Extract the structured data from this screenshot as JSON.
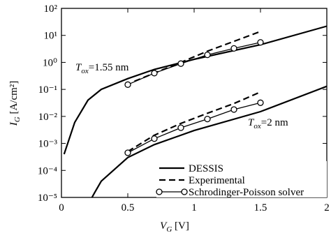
{
  "chart_data": {
    "type": "line",
    "log_y": true,
    "xlabel": [
      "V",
      "G",
      " [V]"
    ],
    "ylabel": [
      "I",
      "G",
      " [A/cm²]"
    ],
    "xlim": [
      0,
      2
    ],
    "xticks": [
      0,
      0.5,
      1,
      1.5,
      2
    ],
    "ylim": [
      1e-05,
      100
    ],
    "yticks": [
      {
        "value": 100,
        "label": "10²"
      },
      {
        "value": 10,
        "label": "10¹"
      },
      {
        "value": 1,
        "label": "10⁰"
      },
      {
        "value": 0.1,
        "label": "10⁻¹"
      },
      {
        "value": 0.01,
        "label": "10⁻²"
      },
      {
        "value": 0.001,
        "label": "10⁻³"
      },
      {
        "value": 0.0001,
        "label": "10⁻⁴"
      },
      {
        "value": 1e-05,
        "label": "10⁻⁵"
      }
    ],
    "annotations": [
      [
        "T",
        "ox",
        "=1.55 nm"
      ],
      [
        "T",
        "ox",
        "=2 nm"
      ]
    ],
    "series": [
      {
        "name": "DESSIS",
        "color": "#000000",
        "style": "solid",
        "marker": "none",
        "curves": [
          {
            "x": [
              0.02,
              0.1,
              0.2,
              0.3,
              0.5,
              0.7,
              1.0,
              1.5,
              2.0
            ],
            "values": [
              0.0004,
              0.006,
              0.04,
              0.1,
              0.25,
              0.55,
              1.3,
              4.5,
              22
            ]
          },
          {
            "x": [
              0.23,
              0.25,
              0.3,
              0.5,
              0.7,
              1.0,
              1.5,
              2.0
            ],
            "values": [
              1e-05,
              1.5e-05,
              4e-05,
              0.0003,
              0.0009,
              0.003,
              0.015,
              0.13
            ]
          }
        ]
      },
      {
        "name": "Experimental",
        "color": "#000000",
        "style": "dashed",
        "marker": "none",
        "curves": [
          {
            "x": [
              0.55,
              0.7,
              0.9,
              1.1,
              1.3,
              1.5
            ],
            "values": [
              0.2,
              0.4,
              1.0,
              2.6,
              6,
              14
            ]
          },
          {
            "x": [
              0.5,
              0.7,
              0.9,
              1.1,
              1.3,
              1.5
            ],
            "values": [
              0.0005,
              0.002,
              0.0055,
              0.013,
              0.03,
              0.08
            ]
          }
        ]
      },
      {
        "name": "Schrodinger-Poisson solver",
        "color": "#000000",
        "style": "solid",
        "marker": "circle",
        "curves": [
          {
            "x": [
              0.5,
              0.7,
              0.9,
              1.1,
              1.3,
              1.5
            ],
            "values": [
              0.15,
              0.4,
              0.9,
              1.9,
              3.3,
              5.5
            ]
          },
          {
            "x": [
              0.5,
              0.7,
              0.9,
              1.1,
              1.3,
              1.5
            ],
            "values": [
              0.00045,
              0.0015,
              0.0038,
              0.008,
              0.018,
              0.032
            ]
          }
        ]
      }
    ]
  }
}
